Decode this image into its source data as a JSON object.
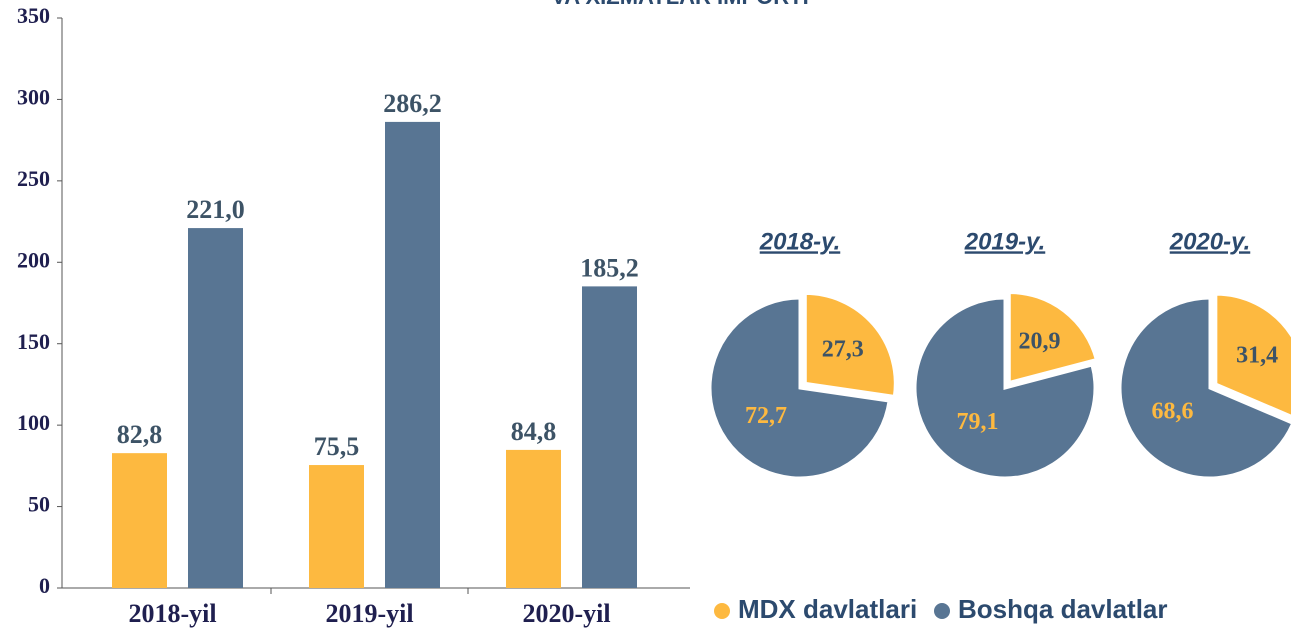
{
  "chart_data": [
    {
      "type": "bar",
      "title": "VA XIZMATLAR IMPORTI",
      "categories": [
        "2018-yil",
        "2019-yil",
        "2020-yil"
      ],
      "series": [
        {
          "name": "MDX davlatlari",
          "color": "#fdb940",
          "values": [
            82.8,
            75.5,
            84.8
          ],
          "value_labels": [
            "82,8",
            "75,5",
            "84,8"
          ]
        },
        {
          "name": "Boshqa davlatlar",
          "color": "#587593",
          "values": [
            221.0,
            286.2,
            185.2
          ],
          "value_labels": [
            "221,0",
            "286,2",
            "185,2"
          ]
        }
      ],
      "ylim": [
        0,
        350
      ],
      "yticks": [
        0,
        50,
        100,
        150,
        200,
        250,
        300,
        350
      ],
      "grid": false,
      "legend": "bottom-right"
    },
    {
      "type": "pie",
      "title": "2018-y.",
      "values": [
        27.3,
        72.7
      ],
      "value_labels": [
        "27,3",
        "72,7"
      ],
      "colors": [
        "#fdb940",
        "#587593"
      ]
    },
    {
      "type": "pie",
      "title": "2019-y.",
      "values": [
        20.9,
        79.1
      ],
      "value_labels": [
        "20,9",
        "79,1"
      ],
      "colors": [
        "#fdb940",
        "#587593"
      ]
    },
    {
      "type": "pie",
      "title": "2020-y.",
      "values": [
        31.4,
        68.6
      ],
      "value_labels": [
        "31,4",
        "68,6"
      ],
      "colors": [
        "#fdb940",
        "#587593"
      ]
    }
  ]
}
